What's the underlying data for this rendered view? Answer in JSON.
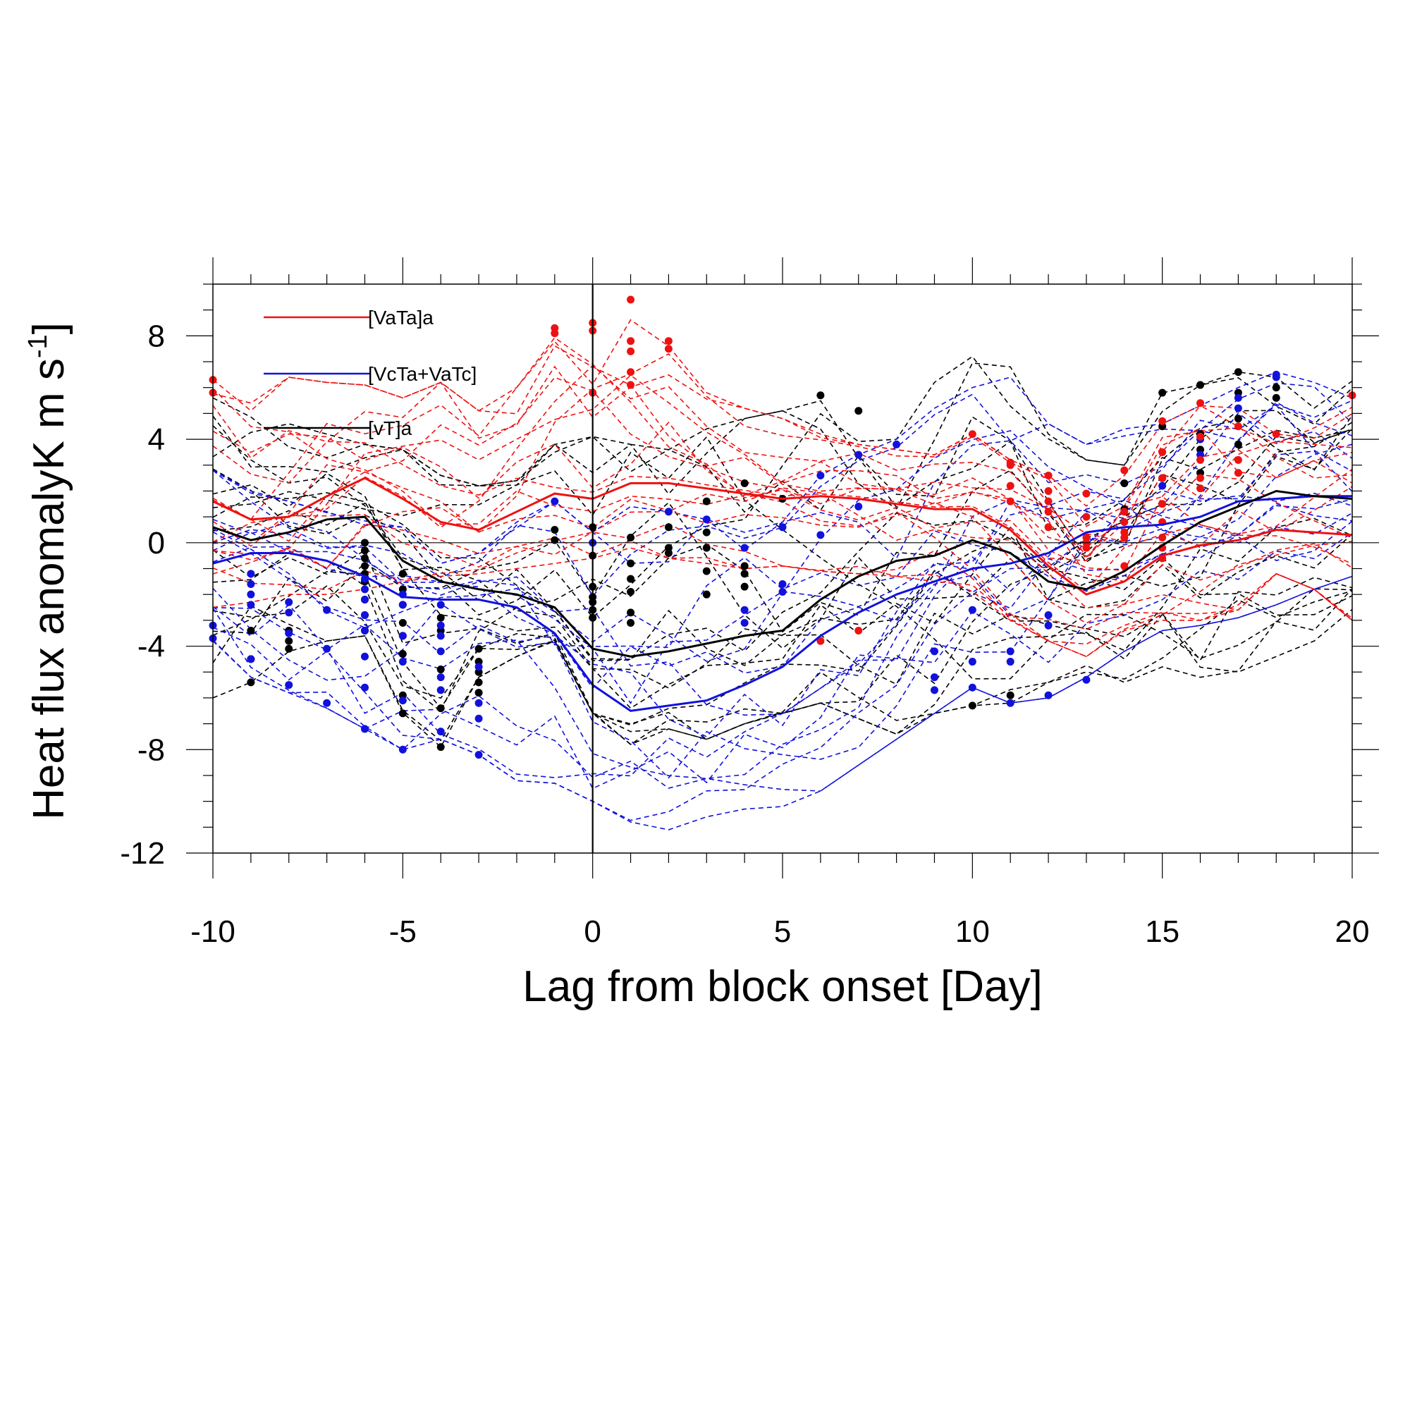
{
  "chart_data": {
    "type": "line",
    "xlabel": "Lag from block onset [Day]",
    "ylabel_main": "Heat flux anomalyK m s",
    "ylabel_sup": "-1",
    "xlim": [
      -10,
      20
    ],
    "ylim": [
      -12,
      10
    ],
    "xticks": [
      -10,
      -5,
      0,
      5,
      10,
      15,
      20
    ],
    "yticks": [
      -12,
      -8,
      -4,
      0,
      4,
      8
    ],
    "grid": false,
    "legend_position": "top-left",
    "colors": {
      "VaTa": "#ee1111",
      "VcTa_VaTc": "#1111dd",
      "vT": "#000000"
    },
    "x": [
      -10,
      -9,
      -8,
      -7,
      -6,
      -5,
      -4,
      -3,
      -2,
      -1,
      0,
      1,
      2,
      3,
      4,
      5,
      6,
      7,
      8,
      9,
      10,
      11,
      12,
      13,
      14,
      15,
      16,
      17,
      18,
      19,
      20
    ],
    "series": [
      {
        "name": "[VaTa]a",
        "key": "VaTa",
        "values": [
          1.6,
          0.9,
          1.0,
          1.8,
          2.5,
          1.7,
          0.8,
          0.5,
          1.2,
          1.9,
          1.7,
          2.3,
          2.3,
          2.1,
          1.9,
          1.7,
          1.8,
          1.7,
          1.5,
          1.3,
          1.3,
          0.5,
          -0.9,
          -2.0,
          -1.5,
          -0.5,
          -0.1,
          0.1,
          0.5,
          0.4,
          0.3
        ]
      },
      {
        "name": "[VcTa+VaTc]",
        "key": "VcTa_VaTc",
        "values": [
          -0.8,
          -0.4,
          -0.4,
          -0.7,
          -1.3,
          -2.1,
          -2.2,
          -2.2,
          -2.5,
          -3.5,
          -5.5,
          -6.5,
          -6.3,
          -6.1,
          -5.5,
          -4.8,
          -3.6,
          -2.7,
          -2.0,
          -1.5,
          -1.0,
          -0.8,
          -0.4,
          0.4,
          0.6,
          0.7,
          1.0,
          1.6,
          1.7,
          1.8,
          1.8
        ]
      },
      {
        "name": "[vT]a",
        "key": "vT",
        "values": [
          0.6,
          0.1,
          0.4,
          0.9,
          1.0,
          -0.7,
          -1.5,
          -1.8,
          -2.0,
          -2.5,
          -4.1,
          -4.4,
          -4.2,
          -3.9,
          -3.6,
          -3.4,
          -2.2,
          -1.3,
          -0.7,
          -0.5,
          0.1,
          -0.4,
          -1.5,
          -1.8,
          -1.1,
          -0.1,
          0.8,
          1.4,
          2.0,
          1.8,
          1.7
        ]
      }
    ],
    "member_ranges": {
      "VaTa": {
        "low": [
          -2.5,
          -2.3,
          -2.0,
          -2.0,
          -1.8,
          -1.5,
          -1.3,
          -1.2,
          -1.0,
          -0.8,
          -0.6,
          -0.2,
          -0.6,
          -0.8,
          -1.0,
          -0.9,
          -1.1,
          -1.2,
          -1.3,
          -1.5,
          -2.0,
          -3.0,
          -3.8,
          -4.4,
          -3.4,
          -3.0,
          -3.0,
          -2.6,
          -1.2,
          -1.8,
          -3.0
        ],
        "high": [
          6.3,
          5.4,
          6.4,
          6.2,
          6.1,
          5.6,
          6.2,
          5.1,
          6.0,
          8.2,
          8.5,
          9.4,
          7.6,
          5.8,
          5.2,
          4.8,
          4.2,
          3.8,
          3.6,
          3.4,
          4.2,
          3.2,
          2.6,
          1.6,
          2.6,
          4.6,
          5.3,
          5.2,
          4.2,
          4.6,
          5.7
        ]
      },
      "VcTa_VaTc": {
        "low": [
          -3.8,
          -5.2,
          -5.8,
          -6.4,
          -7.2,
          -8.0,
          -7.6,
          -8.2,
          -9.2,
          -9.3,
          -10.0,
          -10.8,
          -11.1,
          -10.6,
          -10.3,
          -10.2,
          -9.6,
          -8.6,
          -7.6,
          -6.6,
          -5.6,
          -6.2,
          -6.0,
          -5.2,
          -4.2,
          -3.4,
          -3.2,
          -2.9,
          -2.4,
          -1.8,
          -1.3
        ],
        "high": [
          2.8,
          2.0,
          1.6,
          1.2,
          1.0,
          0.6,
          -0.8,
          -0.4,
          0.8,
          1.6,
          0.4,
          1.4,
          1.2,
          0.9,
          0.4,
          0.8,
          2.6,
          3.4,
          4.0,
          5.2,
          6.0,
          6.4,
          4.6,
          3.8,
          4.4,
          4.6,
          5.3,
          6.0,
          6.6,
          6.2,
          5.6
        ]
      },
      "vT": {
        "low": [
          -6.0,
          -5.4,
          -4.2,
          -3.8,
          -3.6,
          -6.6,
          -7.9,
          -5.2,
          -4.4,
          -3.8,
          -6.6,
          -7.8,
          -7.2,
          -7.6,
          -7.0,
          -6.6,
          -6.2,
          -6.8,
          -7.4,
          -6.6,
          -6.3,
          -6.2,
          -5.4,
          -5.0,
          -5.4,
          -4.8,
          -5.5,
          -5.0,
          -4.4,
          -3.8,
          -2.6
        ],
        "high": [
          5.6,
          5.0,
          4.6,
          4.2,
          3.8,
          3.6,
          2.6,
          2.2,
          2.4,
          3.8,
          4.1,
          3.8,
          3.6,
          4.4,
          4.8,
          5.1,
          5.7,
          5.1,
          4.0,
          6.2,
          7.2,
          6.8,
          4.2,
          3.2,
          3.0,
          5.8,
          6.1,
          6.6,
          6.4,
          6.1,
          8.1
        ]
      }
    },
    "highlight_points": {
      "VaTa": [
        [
          -10,
          6.3
        ],
        [
          -10,
          5.8
        ],
        [
          -1,
          8.3
        ],
        [
          -1,
          8.1
        ],
        [
          0,
          8.5
        ],
        [
          0,
          8.2
        ],
        [
          0,
          5.8
        ],
        [
          1,
          9.4
        ],
        [
          1,
          7.8
        ],
        [
          1,
          7.4
        ],
        [
          1,
          6.6
        ],
        [
          1,
          6.1
        ],
        [
          2,
          7.8
        ],
        [
          2,
          7.5
        ],
        [
          6,
          -3.8
        ],
        [
          7,
          -3.4
        ],
        [
          10,
          4.2
        ],
        [
          11,
          3.1
        ],
        [
          11,
          3.0
        ],
        [
          11,
          2.2
        ],
        [
          11,
          1.6
        ],
        [
          12,
          2.6
        ],
        [
          12,
          2.0
        ],
        [
          12,
          1.6
        ],
        [
          12,
          1.2
        ],
        [
          12,
          0.6
        ],
        [
          13,
          1.9
        ],
        [
          13,
          1.0
        ],
        [
          13,
          0.2
        ],
        [
          13,
          0.0
        ],
        [
          13,
          -0.2
        ],
        [
          14,
          2.8
        ],
        [
          14,
          1.2
        ],
        [
          14,
          0.8
        ],
        [
          14,
          0.4
        ],
        [
          14,
          0.2
        ],
        [
          14,
          -0.9
        ],
        [
          15,
          4.7
        ],
        [
          15,
          3.5
        ],
        [
          15,
          2.5
        ],
        [
          15,
          1.5
        ],
        [
          15,
          0.8
        ],
        [
          15,
          0.2
        ],
        [
          15,
          -0.2
        ],
        [
          15,
          -0.6
        ],
        [
          16,
          5.4
        ],
        [
          16,
          4.1
        ],
        [
          16,
          3.2
        ],
        [
          16,
          2.5
        ],
        [
          16,
          2.1
        ],
        [
          17,
          4.5
        ],
        [
          17,
          3.2
        ],
        [
          17,
          2.7
        ],
        [
          18,
          4.2
        ],
        [
          20,
          5.7
        ]
      ],
      "VcTa_VaTc": [
        [
          -10,
          -3.2
        ],
        [
          -10,
          -3.7
        ],
        [
          -9,
          -1.2
        ],
        [
          -9,
          -1.6
        ],
        [
          -9,
          -2.0
        ],
        [
          -9,
          -2.4
        ],
        [
          -9,
          -4.5
        ],
        [
          -8,
          -2.3
        ],
        [
          -8,
          -2.7
        ],
        [
          -8,
          -3.5
        ],
        [
          -8,
          -5.5
        ],
        [
          -7,
          -2.6
        ],
        [
          -7,
          -4.1
        ],
        [
          -7,
          -6.2
        ],
        [
          -6,
          -1.4
        ],
        [
          -6,
          -1.8
        ],
        [
          -6,
          -2.2
        ],
        [
          -6,
          -2.8
        ],
        [
          -6,
          -3.4
        ],
        [
          -6,
          -4.4
        ],
        [
          -6,
          -5.6
        ],
        [
          -6,
          -7.2
        ],
        [
          -5,
          -2.0
        ],
        [
          -5,
          -2.4
        ],
        [
          -5,
          -3.6
        ],
        [
          -5,
          -4.6
        ],
        [
          -5,
          -6.1
        ],
        [
          -5,
          -8.0
        ],
        [
          -4,
          -2.4
        ],
        [
          -4,
          -3.2
        ],
        [
          -4,
          -3.6
        ],
        [
          -4,
          -4.2
        ],
        [
          -4,
          -5.2
        ],
        [
          -4,
          -5.7
        ],
        [
          -4,
          -7.3
        ],
        [
          -3,
          -4.8
        ],
        [
          -3,
          -6.2
        ],
        [
          -3,
          -6.8
        ],
        [
          -3,
          -8.2
        ],
        [
          -1,
          1.6
        ],
        [
          0,
          0.0
        ],
        [
          2,
          1.2
        ],
        [
          3,
          0.9
        ],
        [
          4,
          -0.2
        ],
        [
          4,
          -2.6
        ],
        [
          4,
          -3.1
        ],
        [
          5,
          0.6
        ],
        [
          5,
          -1.6
        ],
        [
          5,
          -1.9
        ],
        [
          6,
          2.6
        ],
        [
          6,
          0.3
        ],
        [
          7,
          3.4
        ],
        [
          7,
          1.4
        ],
        [
          8,
          3.8
        ],
        [
          9,
          -4.2
        ],
        [
          9,
          -5.2
        ],
        [
          9,
          -5.7
        ],
        [
          10,
          -2.6
        ],
        [
          10,
          -4.6
        ],
        [
          10,
          -5.6
        ],
        [
          11,
          -4.6
        ],
        [
          11,
          -4.2
        ],
        [
          11,
          -6.2
        ],
        [
          12,
          -2.8
        ],
        [
          12,
          -3.2
        ],
        [
          12,
          -5.9
        ],
        [
          13,
          -5.3
        ],
        [
          15,
          2.2
        ],
        [
          16,
          3.4
        ],
        [
          16,
          4.0
        ],
        [
          17,
          5.2
        ],
        [
          17,
          5.6
        ],
        [
          18,
          6.4
        ],
        [
          18,
          6.5
        ]
      ],
      "vT": [
        [
          -9,
          -3.4
        ],
        [
          -9,
          -4.5
        ],
        [
          -9,
          -5.4
        ],
        [
          -8,
          -3.4
        ],
        [
          -8,
          -3.8
        ],
        [
          -8,
          -4.1
        ],
        [
          -6,
          0.0
        ],
        [
          -6,
          -0.3
        ],
        [
          -6,
          -0.6
        ],
        [
          -6,
          -0.9
        ],
        [
          -6,
          -1.2
        ],
        [
          -6,
          -1.5
        ],
        [
          -6,
          -2.2
        ],
        [
          -6,
          -2.8
        ],
        [
          -6,
          -3.4
        ],
        [
          -5,
          -1.2
        ],
        [
          -5,
          -1.8
        ],
        [
          -5,
          -2.4
        ],
        [
          -5,
          -3.1
        ],
        [
          -5,
          -3.6
        ],
        [
          -5,
          -4.3
        ],
        [
          -5,
          -5.9
        ],
        [
          -5,
          -6.6
        ],
        [
          -4,
          -2.9
        ],
        [
          -4,
          -3.4
        ],
        [
          -4,
          -4.9
        ],
        [
          -4,
          -6.4
        ],
        [
          -4,
          -7.9
        ],
        [
          -3,
          -4.1
        ],
        [
          -3,
          -4.6
        ],
        [
          -3,
          -5.0
        ],
        [
          -3,
          -5.4
        ],
        [
          -3,
          -5.8
        ],
        [
          -1,
          0.5
        ],
        [
          -1,
          0.1
        ],
        [
          0,
          0.6
        ],
        [
          0,
          -0.5
        ],
        [
          0,
          -1.7
        ],
        [
          0,
          -2.1
        ],
        [
          0,
          -2.3
        ],
        [
          0,
          -2.6
        ],
        [
          0,
          -2.9
        ],
        [
          1,
          0.2
        ],
        [
          1,
          -0.8
        ],
        [
          1,
          -1.4
        ],
        [
          1,
          -1.9
        ],
        [
          1,
          -2.7
        ],
        [
          1,
          -3.1
        ],
        [
          2,
          0.6
        ],
        [
          2,
          -0.2
        ],
        [
          2,
          -0.4
        ],
        [
          3,
          1.6
        ],
        [
          3,
          0.4
        ],
        [
          3,
          -0.2
        ],
        [
          3,
          -1.1
        ],
        [
          3,
          -2.0
        ],
        [
          4,
          2.3
        ],
        [
          4,
          -0.9
        ],
        [
          4,
          -1.2
        ],
        [
          4,
          -1.7
        ],
        [
          5,
          1.7
        ],
        [
          6,
          5.7
        ],
        [
          7,
          5.1
        ],
        [
          10,
          -6.3
        ],
        [
          11,
          -5.9
        ],
        [
          14,
          2.3
        ],
        [
          14,
          1.3
        ],
        [
          15,
          5.8
        ],
        [
          15,
          4.5
        ],
        [
          15,
          2.5
        ],
        [
          16,
          6.1
        ],
        [
          16,
          4.2
        ],
        [
          16,
          3.6
        ],
        [
          16,
          2.7
        ],
        [
          17,
          6.6
        ],
        [
          17,
          5.8
        ],
        [
          17,
          4.8
        ],
        [
          17,
          3.8
        ],
        [
          18,
          6.0
        ],
        [
          18,
          5.6
        ]
      ]
    }
  }
}
